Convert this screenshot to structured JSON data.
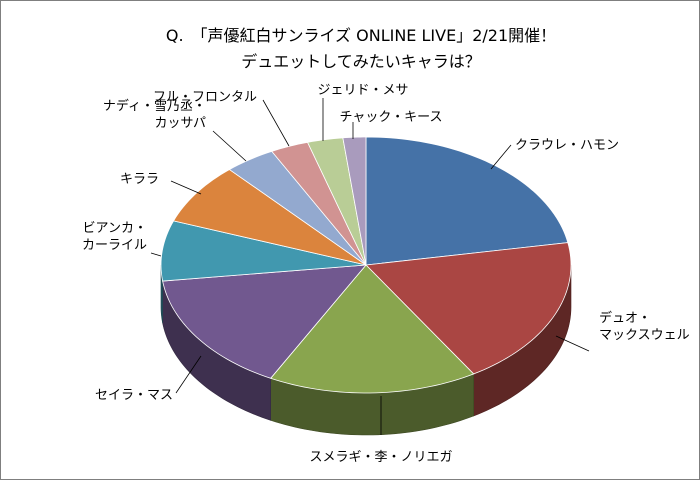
{
  "chart_data": {
    "type": "pie",
    "title": "Q.　「声優紅白サンライズ ONLINE LIVE」2/21開催！",
    "subtitle": "デュエットしてみたいキャラは？",
    "labels_outside": true,
    "slices": [
      {
        "label": [
          "クラウレ・ハモン"
        ],
        "value": 22.2,
        "color": "#4572a7"
      },
      {
        "label": [
          "デュオ・",
          "マックスウェル"
        ],
        "value": 19.0,
        "color": "#aa4643"
      },
      {
        "label": [
          "スメラギ・李・ノリエガ"
        ],
        "value": 16.5,
        "color": "#89a54e"
      },
      {
        "label": [
          "セイラ・マス"
        ],
        "value": 15.3,
        "color": "#71588f"
      },
      {
        "label": [
          "ビアンカ・",
          "カーライル"
        ],
        "value": 7.6,
        "color": "#4198af"
      },
      {
        "label": [
          "キララ"
        ],
        "value": 7.8,
        "color": "#db843d"
      },
      {
        "label": [
          "ナディ・雪乃丞・",
          "カッサパ"
        ],
        "value": 4.0,
        "color": "#93a9cf"
      },
      {
        "label": [
          "フル・フロンタル"
        ],
        "value": 3.0,
        "color": "#d19392"
      },
      {
        "label": [
          "ジェリド・メサ"
        ],
        "value": 2.8,
        "color": "#b9cd96"
      },
      {
        "label": [
          "チャック・キース"
        ],
        "value": 1.8,
        "color": "#a99bbd"
      }
    ]
  }
}
